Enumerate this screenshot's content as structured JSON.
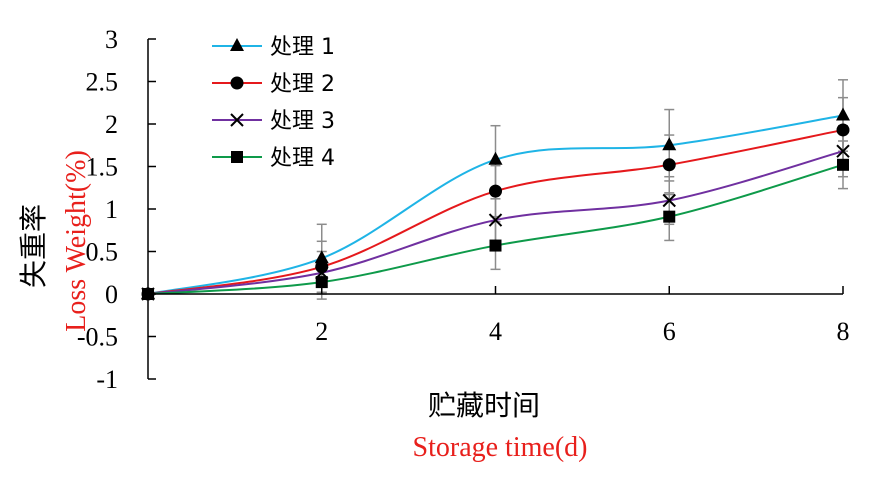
{
  "chart_data": {
    "type": "line",
    "x_values": [
      0,
      2,
      4,
      6,
      8
    ],
    "x_tick_labels": [
      "2",
      "4",
      "6",
      "8"
    ],
    "y_tick_labels": [
      "3",
      "2.5",
      "2",
      "1.5",
      "1",
      "0.5",
      "0",
      "-0.5",
      "-1"
    ],
    "ylim": [
      -1,
      3
    ],
    "xlim": [
      0,
      8
    ],
    "ylabel_zh": "失重率",
    "ylabel_en": "Loss Weight(%)",
    "xlabel_zh": "贮藏时间",
    "xlabel_en": "Storage time(d)",
    "english_label_color": "#e8201c",
    "legend_position": "top-left",
    "grid": false,
    "series": [
      {
        "name": "处理 1",
        "color": "#1fb4e6",
        "marker": "triangle",
        "values": [
          0,
          0.42,
          1.58,
          1.75,
          2.1
        ],
        "error": [
          0,
          0.4,
          0.4,
          0.42,
          0.42
        ]
      },
      {
        "name": "处理 2",
        "color": "#e5191c",
        "marker": "circle",
        "values": [
          0,
          0.32,
          1.21,
          1.52,
          1.93
        ],
        "error": [
          0,
          0.3,
          0.3,
          0.35,
          0.38
        ]
      },
      {
        "name": "处理 3",
        "color": "#7030a0",
        "marker": "cross",
        "values": [
          0,
          0.25,
          0.87,
          1.1,
          1.68
        ],
        "error": [
          0,
          0.25,
          0.25,
          0.28,
          0.3
        ]
      },
      {
        "name": "处理 4",
        "color": "#0e9a4a",
        "marker": "square",
        "values": [
          0,
          0.14,
          0.57,
          0.91,
          1.52
        ],
        "error": [
          0,
          0.2,
          0.28,
          0.28,
          0.28
        ]
      }
    ]
  }
}
